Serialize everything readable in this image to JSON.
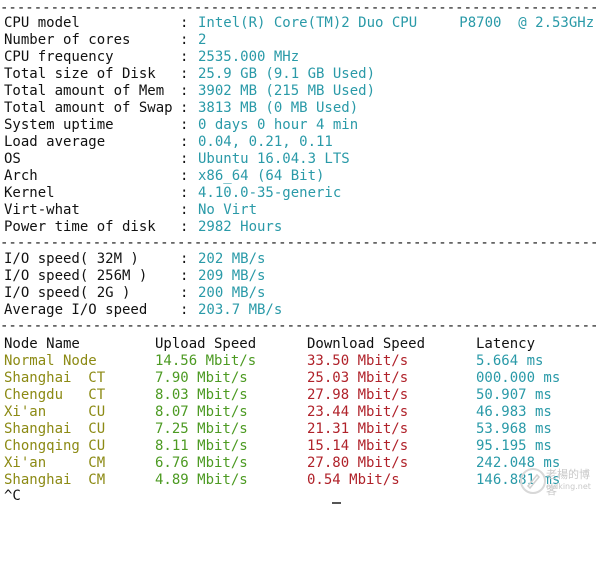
{
  "separator": "------------------------------------------------------------------------------------------",
  "sysinfo": [
    {
      "label": "CPU model",
      "value": "Intel(R) Core(TM)2 Duo CPU     P8700  @ 2.53GHz"
    },
    {
      "label": "Number of cores",
      "value": "2"
    },
    {
      "label": "CPU frequency",
      "value": "2535.000 MHz"
    },
    {
      "label": "Total size of Disk",
      "value": "25.9 GB (9.1 GB Used)"
    },
    {
      "label": "Total amount of Mem",
      "value": "3902 MB (215 MB Used)"
    },
    {
      "label": "Total amount of Swap",
      "value": "3813 MB (0 MB Used)"
    },
    {
      "label": "System uptime",
      "value": "0 days 0 hour 4 min"
    },
    {
      "label": "Load average",
      "value": "0.04, 0.21, 0.11"
    },
    {
      "label": "OS",
      "value": "Ubuntu 16.04.3 LTS"
    },
    {
      "label": "Arch",
      "value": "x86_64 (64 Bit)"
    },
    {
      "label": "Kernel",
      "value": "4.10.0-35-generic"
    },
    {
      "label": "Virt-what",
      "value": "No Virt"
    },
    {
      "label": "Power time of disk",
      "value": "2982 Hours"
    }
  ],
  "io": [
    {
      "label": "I/O speed( 32M )",
      "value": "202 MB/s"
    },
    {
      "label": "I/O speed( 256M )",
      "value": "209 MB/s"
    },
    {
      "label": "I/O speed( 2G )",
      "value": "200 MB/s"
    },
    {
      "label": "Average I/O speed",
      "value": "203.7 MB/s"
    }
  ],
  "speedtest": {
    "headers": [
      "Node Name",
      "Upload Speed",
      "Download Speed",
      "Latency"
    ],
    "rows": [
      {
        "name": "Normal Node",
        "upload": "14.56 Mbit/s",
        "download": "33.50 Mbit/s",
        "latency": "5.664 ms"
      },
      {
        "name": "Shanghai  CT",
        "upload": "7.90 Mbit/s",
        "download": "25.03 Mbit/s",
        "latency": "000.000 ms"
      },
      {
        "name": "Chengdu   CT",
        "upload": "8.03 Mbit/s",
        "download": "27.98 Mbit/s",
        "latency": "50.907 ms"
      },
      {
        "name": "Xi'an     CU",
        "upload": "8.07 Mbit/s",
        "download": "23.44 Mbit/s",
        "latency": "46.983 ms"
      },
      {
        "name": "Shanghai  CU",
        "upload": "7.25 Mbit/s",
        "download": "21.31 Mbit/s",
        "latency": "53.968 ms"
      },
      {
        "name": "Chongqing CU",
        "upload": "8.11 Mbit/s",
        "download": "15.14 Mbit/s",
        "latency": "95.195 ms"
      },
      {
        "name": "Xi'an     CM",
        "upload": "6.76 Mbit/s",
        "download": "27.80 Mbit/s",
        "latency": "242.048 ms"
      },
      {
        "name": "Shanghai  CM",
        "upload": "4.89 Mbit/s",
        "download": "0.54 Mbit/s",
        "latency": "146.881 ms"
      }
    ]
  },
  "prompt": "^C",
  "watermark": {
    "text": "老楊的博客",
    "url": "oldking.net",
    "icon": "pen-logo-icon"
  },
  "colors": {
    "value": "#2a9aa8",
    "node": "#8c8a14",
    "upload": "#4c9a22",
    "download": "#b0222a",
    "latency": "#2a9aa8"
  }
}
